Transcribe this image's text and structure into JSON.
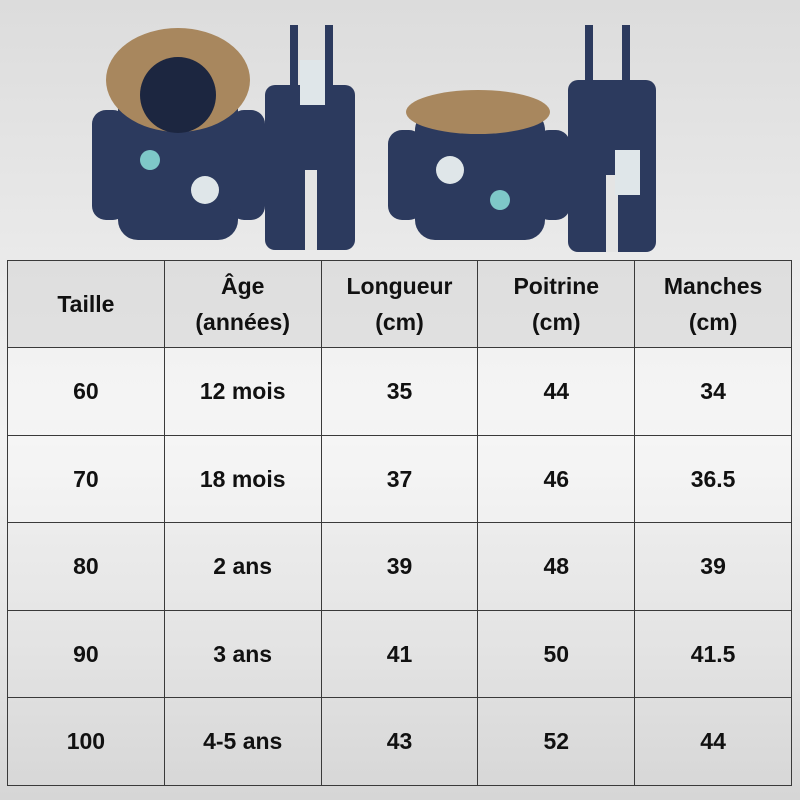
{
  "product_image": {
    "alt_icon": "kids-snowsuit-jacket-and-overalls"
  },
  "size_table": {
    "headers": [
      {
        "line1": "Taille",
        "line2": ""
      },
      {
        "line1": "Âge",
        "line2": "(années)"
      },
      {
        "line1": "Longueur",
        "line2": "(cm)"
      },
      {
        "line1": "Poitrine",
        "line2": "(cm)"
      },
      {
        "line1": "Manches",
        "line2": "(cm)"
      }
    ],
    "rows": [
      [
        "60",
        "12 mois",
        "35",
        "44",
        "34"
      ],
      [
        "70",
        "18 mois",
        "37",
        "46",
        "36.5"
      ],
      [
        "80",
        "2 ans",
        "39",
        "48",
        "39"
      ],
      [
        "90",
        "3 ans",
        "41",
        "50",
        "41.5"
      ],
      [
        "100",
        "4-5 ans",
        "43",
        "52",
        "44"
      ]
    ]
  },
  "colors": {
    "garment": "#2c3a5e",
    "fur": "#a8875e",
    "border": "#3a3a3a"
  }
}
